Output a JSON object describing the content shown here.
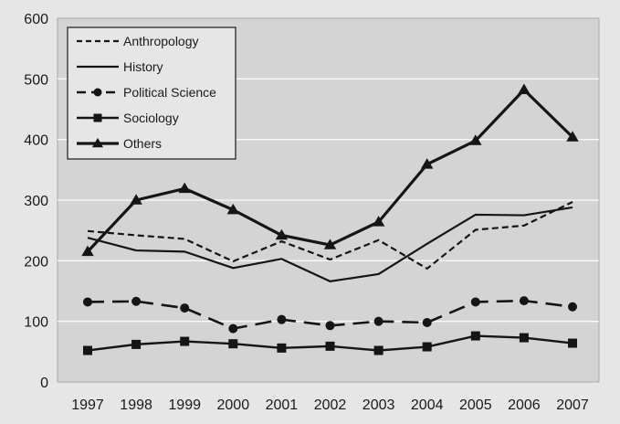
{
  "chart_data": {
    "type": "line",
    "title": "",
    "xlabel": "",
    "ylabel": "",
    "ylim": [
      0,
      600
    ],
    "yticks": [
      0,
      100,
      200,
      300,
      400,
      500,
      600
    ],
    "grid": "horizontal",
    "legend_position": "top-left",
    "x": [
      "1997",
      "1998",
      "1999",
      "2000",
      "2001",
      "2002",
      "2003",
      "2004",
      "2005",
      "2006",
      "2007"
    ],
    "series": [
      {
        "name": "Anthropology",
        "line": "dashed",
        "marker": "none",
        "values": [
          249,
          242,
          236,
          199,
          232,
          202,
          234,
          187,
          251,
          258,
          297
        ]
      },
      {
        "name": "History",
        "line": "solid",
        "marker": "none",
        "values": [
          238,
          217,
          215,
          188,
          203,
          166,
          178,
          228,
          276,
          275,
          288
        ]
      },
      {
        "name": "Political Science",
        "line": "long-dash",
        "marker": "circle",
        "values": [
          132,
          133,
          122,
          88,
          103,
          93,
          100,
          98,
          132,
          134,
          124
        ]
      },
      {
        "name": "Sociology",
        "line": "solid",
        "marker": "square",
        "values": [
          52,
          62,
          67,
          63,
          56,
          59,
          52,
          58,
          76,
          73,
          64
        ]
      },
      {
        "name": "Others",
        "line": "solid-thick",
        "marker": "triangle",
        "values": [
          215,
          300,
          319,
          284,
          242,
          226,
          264,
          359,
          398,
          482,
          404
        ]
      }
    ]
  }
}
